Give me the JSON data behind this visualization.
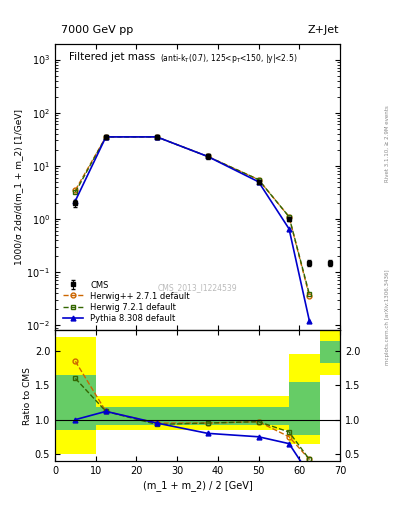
{
  "title_top": "7000 GeV pp",
  "title_right": "Z+Jet",
  "plot_title": "Filtered jet mass",
  "plot_subtitle": "(anti-k_{T}(0.7), 125<p_{T}<150, |y|<2.5)",
  "ylabel_main": "1000/σ 2dσ/d(m_1 + m_2) [1/GeV]",
  "ylabel_ratio": "Ratio to CMS",
  "xlabel": "(m_1 + m_2) / 2 [GeV]",
  "watermark": "CMS_2013_I1224539",
  "rivet_label": "Rivet 3.1.10, ≥ 2.9M events",
  "mcplots_label": "mcplots.cern.ch [arXiv:1306.3436]",
  "cms_x": [
    5,
    12.5,
    25,
    37.5,
    50,
    57.5,
    62.5,
    67.5
  ],
  "cms_y": [
    2.0,
    35.0,
    35.0,
    15.0,
    5.0,
    1.0,
    0.15,
    0.15
  ],
  "cms_yerr_lo": [
    0.3,
    3.0,
    3.0,
    1.5,
    0.5,
    0.1,
    0.02,
    0.02
  ],
  "cms_yerr_hi": [
    0.3,
    3.0,
    3.0,
    1.5,
    0.5,
    0.1,
    0.02,
    0.02
  ],
  "herwig_x": [
    5,
    12.5,
    25,
    37.5,
    50,
    57.5,
    62.5
  ],
  "herwig_y": [
    3.5,
    35.0,
    35.0,
    15.0,
    5.5,
    1.1,
    0.035
  ],
  "herwig2_x": [
    5,
    12.5,
    25,
    37.5,
    50,
    57.5,
    62.5
  ],
  "herwig2_y": [
    3.2,
    35.0,
    35.0,
    15.0,
    5.5,
    1.1,
    0.038
  ],
  "pythia_x": [
    5,
    12.5,
    25,
    37.5,
    50,
    57.5,
    62.5
  ],
  "pythia_y": [
    2.2,
    35.0,
    35.0,
    15.0,
    5.0,
    0.65,
    0.012
  ],
  "ratio_herwig_x": [
    5,
    12.5,
    25,
    37.5,
    50,
    57.5,
    62.5
  ],
  "ratio_herwig_y": [
    1.85,
    1.12,
    0.95,
    0.95,
    0.97,
    0.75,
    0.42
  ],
  "ratio_herwig2_x": [
    5,
    12.5,
    25,
    37.5,
    50,
    57.5,
    62.5
  ],
  "ratio_herwig2_y": [
    1.6,
    1.12,
    0.93,
    0.95,
    0.97,
    0.82,
    0.42
  ],
  "ratio_pythia_x": [
    5,
    12.5,
    25,
    37.5,
    50,
    57.5,
    62.5
  ],
  "ratio_pythia_y": [
    1.0,
    1.12,
    0.95,
    0.8,
    0.75,
    0.65,
    0.2
  ],
  "band_x_edges": [
    0,
    10,
    20,
    30,
    50,
    57.5,
    65,
    70
  ],
  "band_yellow_lo": [
    0.5,
    0.85,
    0.85,
    0.85,
    0.85,
    0.65,
    1.65,
    1.65
  ],
  "band_yellow_hi": [
    2.2,
    1.35,
    1.35,
    1.35,
    1.35,
    1.95,
    2.3,
    2.3
  ],
  "band_green_lo": [
    0.85,
    0.92,
    0.92,
    0.92,
    0.92,
    0.78,
    1.82,
    1.82
  ],
  "band_green_hi": [
    1.65,
    1.18,
    1.18,
    1.18,
    1.18,
    1.55,
    2.15,
    2.15
  ],
  "color_cms": "#000000",
  "color_herwig": "#cc6600",
  "color_herwig2": "#336600",
  "color_pythia": "#0000cc",
  "color_band_yellow": "#ffff00",
  "color_band_green": "#66cc66",
  "xlim": [
    0,
    70
  ],
  "ylim_main": [
    0.008,
    2000
  ],
  "ylim_ratio": [
    0.4,
    2.3
  ],
  "ratio_yticks": [
    0.5,
    1.0,
    1.5,
    2.0
  ]
}
